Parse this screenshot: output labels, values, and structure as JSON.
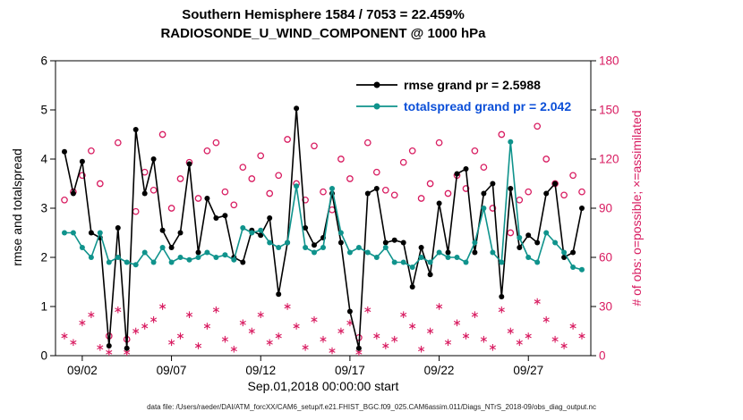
{
  "title": {
    "line1": "Southern Hemisphere 1584 / 7053 = 22.459%",
    "line2": "RADIOSONDE_U_WIND_COMPONENT @ 1000 hPa"
  },
  "axis_labels": {
    "left": "rmse and totalspread",
    "right": "# of obs: o=possible; ×=assimilated",
    "bottom": "Sep.01,2018 00:00:00 start"
  },
  "legend": {
    "entries": [
      {
        "label": "rmse grand pr = 2.5988",
        "line_color": "#000000",
        "text_color": "#000000",
        "marker": "filled-circle"
      },
      {
        "label": "totalspread grand pr = 2.042",
        "line_color": "#0f938c",
        "text_color": "#0b4fd8",
        "marker": "filled-circle"
      }
    ]
  },
  "footer": "data file: /Users/raeder/DAI/ATM_forcXX/CAM6_setup/f.e21.FHIST_BGC.f09_025.CAM6assim.011/Diags_NTrS_2018-09/obs_diag_output.nc",
  "colors": {
    "axis": "#000000",
    "obs": "#d81b60",
    "rmse": "#000000",
    "totalspread": "#0f938c"
  },
  "chart_data": {
    "type": "line",
    "title": "Southern Hemisphere 1584 / 7053 = 22.459%",
    "subtitle": "RADIOSONDE_U_WIND_COMPONENT @ 1000 hPa",
    "xlabel": "Sep.01,2018 00:00:00 start",
    "ylabel_left": "rmse and totalspread",
    "ylabel_right": "# of obs: o=possible; ×=assimilated",
    "xlim": [
      0.5,
      30.5
    ],
    "ylim_left": [
      0,
      6
    ],
    "ylim_right": [
      0,
      180
    ],
    "grid": false,
    "legend_position": "top-center-inside",
    "yticks_left": [
      0,
      1,
      2,
      3,
      4,
      5,
      6
    ],
    "yticks_right": [
      0,
      30,
      60,
      90,
      120,
      150,
      180
    ],
    "xticks": {
      "values": [
        2,
        7,
        12,
        17,
        22,
        27
      ],
      "labels": [
        "09/02",
        "09/07",
        "09/12",
        "09/17",
        "09/22",
        "09/27"
      ]
    },
    "x": [
      1,
      1.5,
      2,
      2.5,
      3,
      3.5,
      4,
      4.5,
      5,
      5.5,
      6,
      6.5,
      7,
      7.5,
      8,
      8.5,
      9,
      9.5,
      10,
      10.5,
      11,
      11.5,
      12,
      12.5,
      13,
      13.5,
      14,
      14.5,
      15,
      15.5,
      16,
      16.5,
      17,
      17.5,
      18,
      18.5,
      19,
      19.5,
      20,
      20.5,
      21,
      21.5,
      22,
      22.5,
      23,
      23.5,
      24,
      24.5,
      25,
      25.5,
      26,
      26.5,
      27,
      27.5,
      28,
      28.5,
      29,
      29.5,
      30
    ],
    "series": [
      {
        "name": "rmse",
        "axis": "left",
        "color": "#000000",
        "marker": "filled-circle",
        "grand_mean": 2.5988,
        "values": [
          4.15,
          3.3,
          3.95,
          2.5,
          2.4,
          0.2,
          2.6,
          0.15,
          4.6,
          3.3,
          4.0,
          2.55,
          2.2,
          2.5,
          3.9,
          2.1,
          3.2,
          2.8,
          2.85,
          2.0,
          1.9,
          2.55,
          2.45,
          2.8,
          1.25,
          2.3,
          5.03,
          2.6,
          2.25,
          2.4,
          3.3,
          2.3,
          0.9,
          0.15,
          3.3,
          3.4,
          2.3,
          2.35,
          2.3,
          1.4,
          2.2,
          1.65,
          3.1,
          2.1,
          3.7,
          3.8,
          2.1,
          3.3,
          3.5,
          1.2,
          3.4,
          2.2,
          2.45,
          2.3,
          3.3,
          3.5,
          2.0,
          2.1,
          3.0
        ]
      },
      {
        "name": "totalspread",
        "axis": "left",
        "color": "#0f938c",
        "marker": "filled-circle",
        "grand_mean": 2.042,
        "values": [
          2.5,
          2.5,
          2.2,
          2.0,
          2.5,
          1.9,
          2.0,
          1.9,
          1.85,
          2.1,
          1.9,
          2.2,
          1.9,
          2.0,
          1.95,
          2.0,
          2.1,
          2.0,
          2.05,
          1.95,
          2.6,
          2.5,
          2.55,
          2.3,
          2.2,
          2.3,
          3.45,
          2.2,
          2.1,
          2.2,
          3.4,
          2.5,
          2.1,
          2.2,
          2.1,
          2.0,
          2.2,
          1.9,
          1.9,
          1.8,
          2.0,
          1.9,
          2.1,
          2.0,
          2.0,
          1.9,
          2.3,
          3.0,
          2.1,
          1.9,
          4.35,
          2.4,
          2.0,
          1.9,
          2.5,
          2.3,
          2.1,
          1.8,
          1.75
        ]
      },
      {
        "name": "possible",
        "axis": "right",
        "color": "#d81b60",
        "marker": "open-circle",
        "values": [
          95,
          100,
          110,
          125,
          105,
          12,
          130,
          10,
          88,
          112,
          101,
          135,
          90,
          108,
          118,
          96,
          125,
          130,
          100,
          92,
          115,
          108,
          122,
          99,
          110,
          132,
          105,
          95,
          128,
          100,
          89,
          120,
          108,
          11,
          130,
          112,
          101,
          98,
          118,
          125,
          96,
          105,
          130,
          99,
          110,
          102,
          125,
          115,
          90,
          135,
          75,
          95,
          100,
          140,
          120,
          105,
          98,
          110,
          100
        ]
      },
      {
        "name": "assimilated",
        "axis": "right",
        "color": "#d81b60",
        "marker": "asterisk",
        "values": [
          12,
          8,
          20,
          25,
          5,
          2,
          28,
          2,
          15,
          18,
          22,
          30,
          8,
          12,
          25,
          6,
          18,
          28,
          10,
          4,
          20,
          15,
          25,
          8,
          12,
          30,
          18,
          5,
          22,
          10,
          3,
          15,
          20,
          2,
          28,
          12,
          6,
          10,
          25,
          18,
          4,
          15,
          30,
          8,
          20,
          12,
          25,
          10,
          5,
          28,
          15,
          8,
          12,
          33,
          22,
          10,
          6,
          18,
          12
        ]
      }
    ]
  }
}
